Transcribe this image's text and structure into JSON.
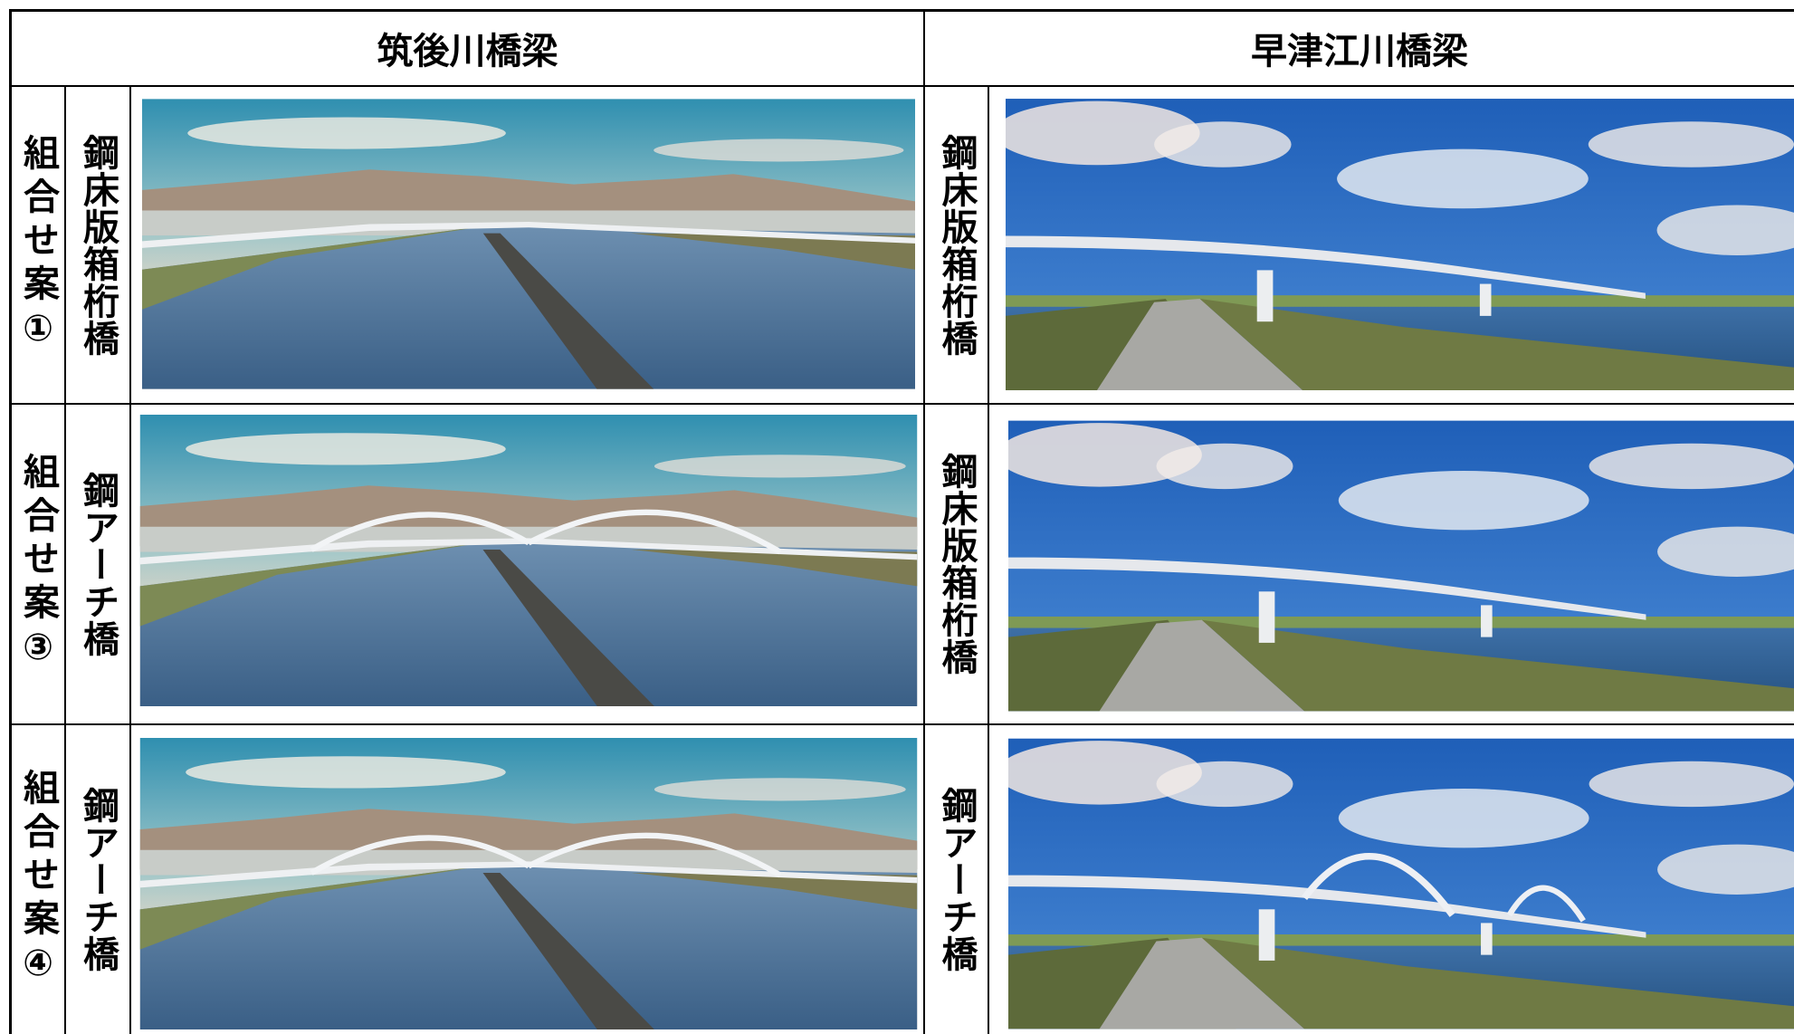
{
  "header": {
    "left": "筑後川橋梁",
    "right": "早津江川橋梁"
  },
  "rows": [
    {
      "plan": "組合せ案①",
      "left_type": "鋼床版箱桁橋",
      "right_type": "鋼床版箱桁橋"
    },
    {
      "plan": "組合せ案③",
      "left_type": "鋼アーチ橋",
      "right_type": "鋼床版箱桁橋"
    },
    {
      "plan": "組合せ案④",
      "left_type": "鋼アーチ橋",
      "right_type": "鋼アーチ橋"
    }
  ]
}
